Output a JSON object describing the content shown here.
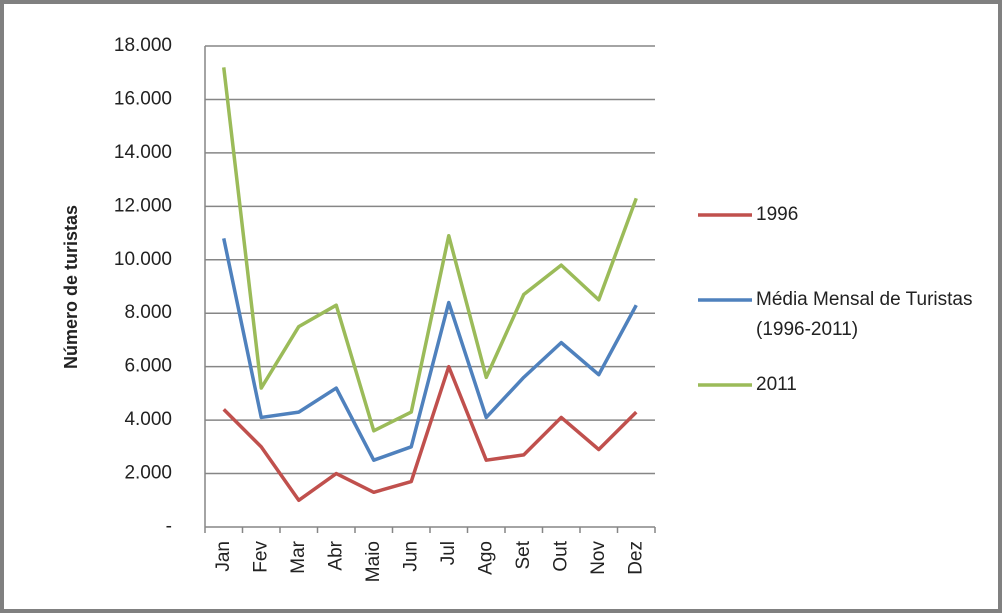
{
  "chart_data": {
    "type": "line",
    "y_label": "Número de turistas",
    "categories": [
      "Jan",
      "Fev",
      "Mar",
      "Abr",
      "Maio",
      "Jun",
      "Jul",
      "Ago",
      "Set",
      "Out",
      "Nov",
      "Dez"
    ],
    "series": [
      {
        "name": "1996",
        "color": "#c0504d",
        "values": [
          4400,
          3000,
          1000,
          2000,
          1300,
          1700,
          6000,
          2500,
          2700,
          4100,
          2900,
          4300
        ]
      },
      {
        "name": "Média Mensal de Turistas (1996-2011)",
        "color": "#4f81bd",
        "values": [
          10800,
          4100,
          4300,
          5200,
          2500,
          3000,
          8400,
          4100,
          5600,
          6900,
          5700,
          8300
        ]
      },
      {
        "name": "2011",
        "color": "#9bbb59",
        "values": [
          17200,
          5200,
          7500,
          8300,
          3600,
          4300,
          10900,
          5600,
          8700,
          9800,
          8500,
          12300
        ]
      }
    ],
    "ylim": [
      0,
      18000
    ],
    "yticks": [
      {
        "value": 0,
        "label": "-"
      },
      {
        "value": 2000,
        "label": "2.000"
      },
      {
        "value": 4000,
        "label": "4.000"
      },
      {
        "value": 6000,
        "label": "6.000"
      },
      {
        "value": 8000,
        "label": "8.000"
      },
      {
        "value": 10000,
        "label": "10.000"
      },
      {
        "value": 12000,
        "label": "12.000"
      },
      {
        "value": 14000,
        "label": "14.000"
      },
      {
        "value": 16000,
        "label": "16.000"
      },
      {
        "value": 18000,
        "label": "18.000"
      }
    ],
    "grid": true
  }
}
